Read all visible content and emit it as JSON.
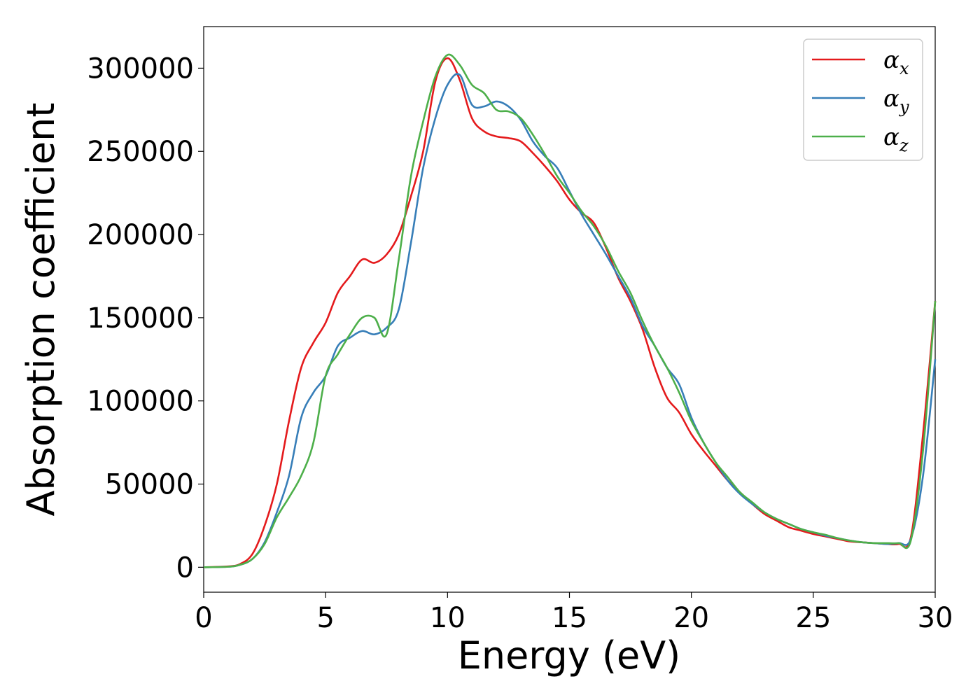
{
  "chart_data": {
    "type": "line",
    "xlabel": "Energy (eV)",
    "ylabel": "Absorption coefficient",
    "xlim": [
      0,
      30
    ],
    "ylim": [
      -15000,
      325000
    ],
    "x_ticks": [
      0,
      5,
      10,
      15,
      20,
      25,
      30
    ],
    "y_ticks": [
      0,
      50000,
      100000,
      150000,
      200000,
      250000,
      300000
    ],
    "grid": false,
    "legend_position": "top-right",
    "colors": {
      "alpha_x": "#e41a1c",
      "alpha_y": "#377eb8",
      "alpha_z": "#4daf4a"
    },
    "legend": [
      {
        "symbol": "α",
        "subscript": "x"
      },
      {
        "symbol": "α",
        "subscript": "y"
      },
      {
        "symbol": "α",
        "subscript": "z"
      }
    ],
    "series": [
      {
        "key": "alpha_x",
        "x": [
          0,
          1,
          1.5,
          2,
          2.5,
          3,
          3.5,
          4,
          4.5,
          5,
          5.5,
          6,
          6.5,
          7,
          7.5,
          8,
          8.5,
          9,
          9.5,
          10,
          10.5,
          11,
          11.5,
          12,
          12.5,
          13,
          13.5,
          14,
          14.5,
          15,
          15.5,
          16,
          16.5,
          17,
          17.5,
          18,
          18.5,
          19,
          19.5,
          20,
          20.5,
          21,
          21.5,
          22,
          22.5,
          23,
          23.5,
          24,
          24.5,
          25,
          25.5,
          26,
          26.5,
          27,
          27.5,
          28,
          28.5,
          29,
          29.5,
          30
        ],
        "y": [
          0,
          500,
          2000,
          8000,
          25000,
          50000,
          88000,
          120000,
          135000,
          147000,
          165000,
          175000,
          185000,
          183000,
          188000,
          200000,
          223000,
          250000,
          292000,
          306000,
          293000,
          270000,
          262000,
          259000,
          258000,
          256000,
          249000,
          241000,
          232000,
          221000,
          213000,
          207000,
          192000,
          174000,
          160000,
          143000,
          120000,
          102000,
          93000,
          80000,
          70000,
          61000,
          52000,
          45000,
          38000,
          32000,
          28000,
          24000,
          22000,
          20000,
          18500,
          17000,
          15500,
          15000,
          14500,
          14000,
          14000,
          18000,
          80000,
          160000
        ]
      },
      {
        "key": "alpha_y",
        "x": [
          0,
          1,
          1.5,
          2,
          2.5,
          3,
          3.5,
          4,
          4.5,
          5,
          5.5,
          6,
          6.5,
          7,
          7.5,
          8,
          8.5,
          9,
          9.5,
          10,
          10.5,
          11,
          11.5,
          12,
          12.5,
          13,
          13.5,
          14,
          14.5,
          15,
          15.5,
          16,
          16.5,
          17,
          17.5,
          18,
          18.5,
          19,
          19.5,
          20,
          20.5,
          21,
          21.5,
          22,
          22.5,
          23,
          23.5,
          24,
          24.5,
          25,
          25.5,
          26,
          26.5,
          27,
          27.5,
          28,
          28.5,
          29,
          29.5,
          30
        ],
        "y": [
          0,
          300,
          1500,
          5000,
          15000,
          33000,
          55000,
          90000,
          105000,
          115000,
          133000,
          138000,
          142000,
          140000,
          144000,
          155000,
          195000,
          240000,
          270000,
          290000,
          296000,
          278000,
          277000,
          280000,
          277000,
          269000,
          256000,
          247000,
          240000,
          226000,
          212000,
          200000,
          188000,
          175000,
          162000,
          145000,
          133000,
          120000,
          110000,
          90000,
          75000,
          63000,
          52000,
          44000,
          38000,
          33000,
          29000,
          26000,
          23000,
          21000,
          19000,
          17500,
          16000,
          15000,
          14500,
          14000,
          14500,
          17000,
          55000,
          125000
        ]
      },
      {
        "key": "alpha_z",
        "x": [
          0,
          1,
          1.5,
          2,
          2.5,
          3,
          3.5,
          4,
          4.5,
          5,
          5.5,
          6,
          6.5,
          7,
          7.5,
          8,
          8.5,
          9,
          9.5,
          10,
          10.5,
          11,
          11.5,
          12,
          12.5,
          13,
          13.5,
          14,
          14.5,
          15,
          15.5,
          16,
          16.5,
          17,
          17.5,
          18,
          18.5,
          19,
          19.5,
          20,
          20.5,
          21,
          21.5,
          22,
          22.5,
          23,
          23.5,
          24,
          24.5,
          25,
          25.5,
          26,
          26.5,
          27,
          27.5,
          28,
          28.5,
          29,
          29.5,
          30
        ],
        "y": [
          0,
          300,
          1500,
          5000,
          14000,
          30000,
          42000,
          55000,
          75000,
          115000,
          128000,
          140000,
          150000,
          150000,
          140000,
          185000,
          235000,
          268000,
          295000,
          308000,
          302000,
          290000,
          285000,
          275000,
          274000,
          270000,
          260000,
          248000,
          235000,
          225000,
          214000,
          205000,
          193000,
          178000,
          165000,
          148000,
          133000,
          120000,
          105000,
          88000,
          75000,
          63000,
          54000,
          45000,
          39000,
          33000,
          29000,
          26000,
          23000,
          21000,
          19500,
          17500,
          16000,
          15000,
          14500,
          14500,
          14500,
          16000,
          70000,
          160000
        ]
      }
    ]
  }
}
